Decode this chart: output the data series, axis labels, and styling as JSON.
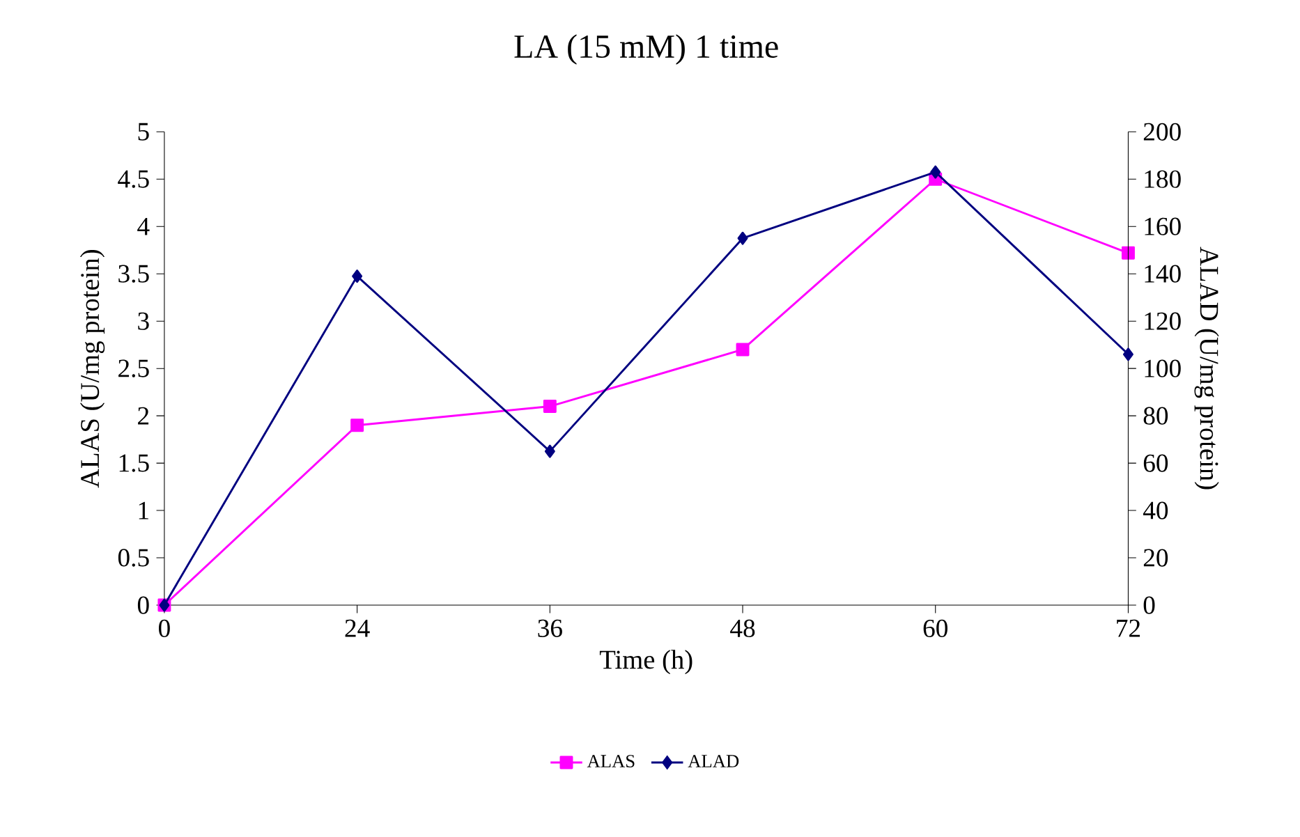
{
  "chart_data": {
    "type": "line",
    "title": "LA (15 mM) 1 time",
    "xlabel": "Time (h)",
    "ylabel": "ALAS (U/mg protein)",
    "y2label": "ALAD (U/mg protein)",
    "categories": [
      "0",
      "24",
      "36",
      "48",
      "60",
      "72"
    ],
    "series": [
      {
        "name": "ALAS",
        "color": "#ff00ff",
        "marker": "square",
        "values": [
          0,
          1.9,
          2.1,
          2.7,
          4.5,
          3.72
        ]
      },
      {
        "name": "ALAD",
        "color": "#000080",
        "marker": "diamond",
        "axis": "y2",
        "values": [
          0,
          139,
          65,
          155,
          183,
          106
        ]
      }
    ],
    "ylim": [
      0,
      5
    ],
    "yticks": [
      0,
      0.5,
      1,
      1.5,
      2,
      2.5,
      3,
      3.5,
      4,
      4.5,
      5
    ],
    "y2lim": [
      0,
      200
    ],
    "y2ticks": [
      0,
      20,
      40,
      60,
      80,
      100,
      120,
      140,
      160,
      180,
      200
    ],
    "legend": "bottom",
    "grid": false
  }
}
